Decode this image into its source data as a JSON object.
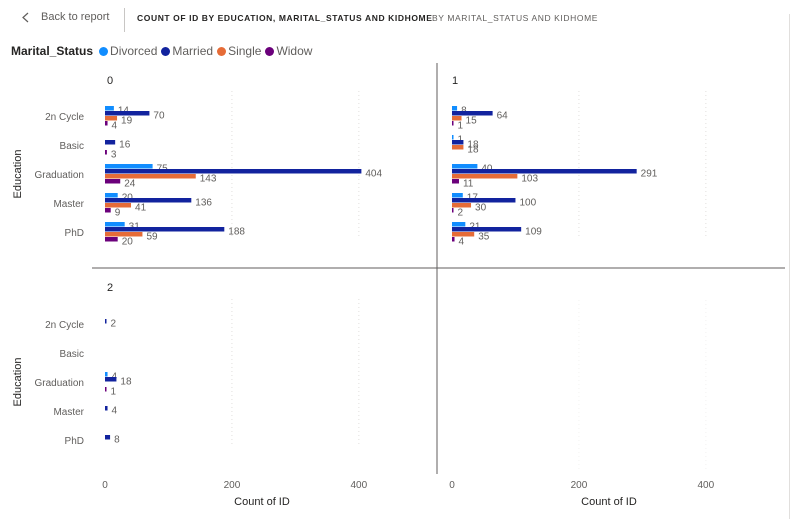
{
  "header": {
    "back_label": "Back to report",
    "title": "COUNT OF ID BY EDUCATION, MARITAL_STATUS AND KIDHOME",
    "drill_label": "BY MARITAL_STATUS AND KIDHOME"
  },
  "legend": {
    "title": "Marital_Status",
    "items": [
      {
        "label": "Divorced",
        "color": "#118DFF"
      },
      {
        "label": "Married",
        "color": "#12239E"
      },
      {
        "label": "Single",
        "color": "#E66C37"
      },
      {
        "label": "Widow",
        "color": "#6B007B"
      }
    ]
  },
  "chart_data": {
    "type": "bar",
    "orientation": "horizontal",
    "small_multiples_field": "Kidhome",
    "categories": [
      "2n Cycle",
      "Basic",
      "Graduation",
      "Master",
      "PhD"
    ],
    "series_names": [
      "Divorced",
      "Married",
      "Single",
      "Widow"
    ],
    "xlabel": "Count of ID",
    "ylabel": "Education",
    "xticks": [
      0,
      200,
      400
    ],
    "xlim": [
      0,
      520
    ],
    "panels": [
      {
        "title": "0",
        "values": {
          "Divorced": [
            14,
            0,
            75,
            20,
            31
          ],
          "Married": [
            70,
            16,
            404,
            136,
            188
          ],
          "Single": [
            19,
            0,
            143,
            41,
            59
          ],
          "Widow": [
            4,
            3,
            24,
            9,
            20
          ]
        }
      },
      {
        "title": "1",
        "values": {
          "Divorced": [
            8,
            1,
            40,
            17,
            21
          ],
          "Married": [
            64,
            18,
            291,
            100,
            109
          ],
          "Single": [
            15,
            18,
            103,
            30,
            35
          ],
          "Widow": [
            1,
            0,
            11,
            2,
            4
          ]
        }
      },
      {
        "title": "2",
        "values": {
          "Divorced": [
            0,
            0,
            4,
            0,
            0
          ],
          "Married": [
            2,
            0,
            18,
            4,
            8
          ],
          "Single": [
            0,
            0,
            0,
            0,
            0
          ],
          "Widow": [
            0,
            0,
            1,
            0,
            0
          ]
        }
      }
    ]
  }
}
